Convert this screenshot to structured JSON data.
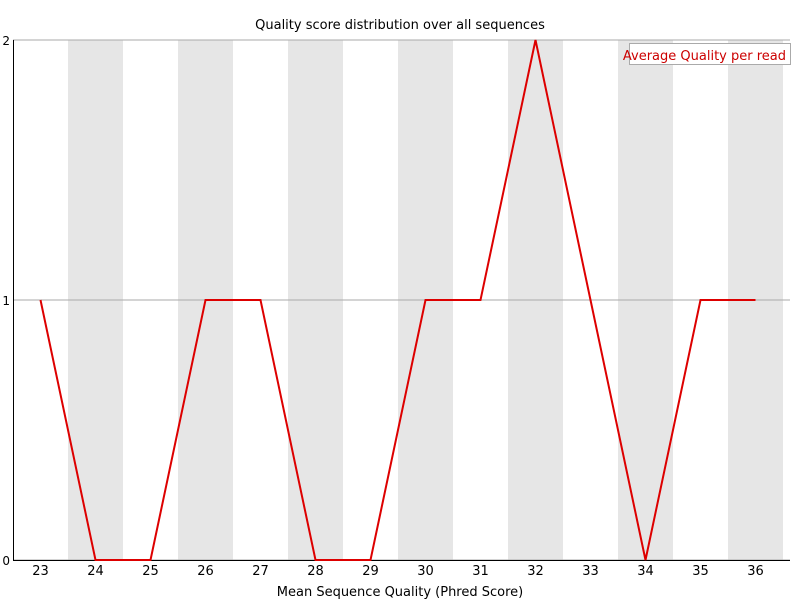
{
  "chart_data": {
    "type": "line",
    "title": "Quality score distribution over all sequences",
    "xlabel": "Mean Sequence Quality (Phred Score)",
    "ylabel": "",
    "x": [
      "23",
      "24",
      "25",
      "26",
      "27",
      "28",
      "29",
      "30",
      "31",
      "32",
      "33",
      "34",
      "35",
      "36"
    ],
    "ylim": [
      0,
      2
    ],
    "yticks": [
      "0",
      "1",
      "2"
    ],
    "series": [
      {
        "name": "Average Quality per read",
        "values": [
          1,
          0,
          0,
          1,
          1,
          0,
          0,
          1,
          1,
          2,
          1,
          0,
          1,
          1
        ]
      }
    ],
    "legend_position": "top-right",
    "grid": "horizontal",
    "band_color": "#e6e6e6",
    "line_color": "#dd0000",
    "legend_text_color": "#cc0000"
  }
}
